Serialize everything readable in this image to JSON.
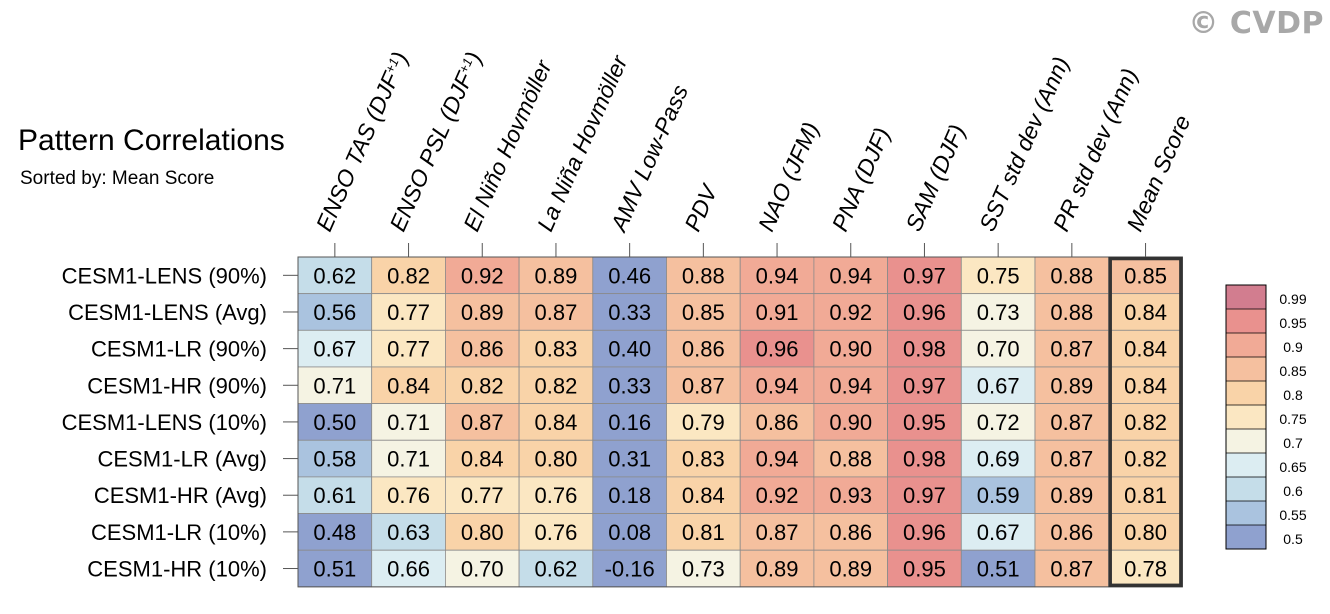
{
  "watermark": "© CVDP",
  "header": {
    "title": "Pattern Correlations",
    "subtitle": "Sorted by: Mean Score"
  },
  "chart_data": {
    "type": "heatmap",
    "columns": [
      "ENSO TAS (DJF+1)",
      "ENSO PSL (DJF+1)",
      "El Niño Hovmöller",
      "La Niña Hovmöller",
      "AMV Low-Pass",
      "PDV",
      "NAO (JFM)",
      "PNA (DJF)",
      "SAM (DJF)",
      "SST std dev (Ann)",
      "PR std dev (Ann)",
      "Mean Score"
    ],
    "rows": [
      "CESM1-LENS (90%)",
      "CESM1-LENS (Avg)",
      "CESM1-LR (90%)",
      "CESM1-HR (90%)",
      "CESM1-LENS (10%)",
      "CESM1-LR (Avg)",
      "CESM1-HR (Avg)",
      "CESM1-LR (10%)",
      "CESM1-HR (10%)"
    ],
    "values": [
      [
        0.62,
        0.82,
        0.92,
        0.89,
        0.46,
        0.88,
        0.94,
        0.94,
        0.97,
        0.75,
        0.88,
        0.85
      ],
      [
        0.56,
        0.77,
        0.89,
        0.87,
        0.33,
        0.85,
        0.91,
        0.92,
        0.96,
        0.73,
        0.88,
        0.84
      ],
      [
        0.67,
        0.77,
        0.86,
        0.83,
        0.4,
        0.86,
        0.96,
        0.9,
        0.98,
        0.7,
        0.87,
        0.84
      ],
      [
        0.71,
        0.84,
        0.82,
        0.82,
        0.33,
        0.87,
        0.94,
        0.94,
        0.97,
        0.67,
        0.89,
        0.84
      ],
      [
        0.5,
        0.71,
        0.87,
        0.84,
        0.16,
        0.79,
        0.86,
        0.9,
        0.95,
        0.72,
        0.87,
        0.82
      ],
      [
        0.58,
        0.71,
        0.84,
        0.8,
        0.31,
        0.83,
        0.94,
        0.88,
        0.98,
        0.69,
        0.87,
        0.82
      ],
      [
        0.61,
        0.76,
        0.77,
        0.76,
        0.18,
        0.84,
        0.92,
        0.93,
        0.97,
        0.59,
        0.89,
        0.81
      ],
      [
        0.48,
        0.63,
        0.8,
        0.76,
        0.08,
        0.81,
        0.87,
        0.86,
        0.96,
        0.67,
        0.86,
        0.8
      ],
      [
        0.51,
        0.66,
        0.7,
        0.62,
        -0.16,
        0.73,
        0.89,
        0.89,
        0.95,
        0.51,
        0.87,
        0.78
      ]
    ],
    "highlighted_column": "Mean Score",
    "colorbar": {
      "labels": [
        "0.99",
        "0.95",
        "0.9",
        "0.85",
        "0.8",
        "0.75",
        "0.7",
        "0.65",
        "0.6",
        "0.55",
        "0.5"
      ],
      "colors_top_to_bottom": [
        "#d27d8f",
        "#e9918e",
        "#f1aa96",
        "#f5c09f",
        "#f9d3a8",
        "#fbe7c2",
        "#f5f3e3",
        "#dcedf2",
        "#c5dde9",
        "#aac3df",
        "#8fa1cf"
      ]
    }
  }
}
